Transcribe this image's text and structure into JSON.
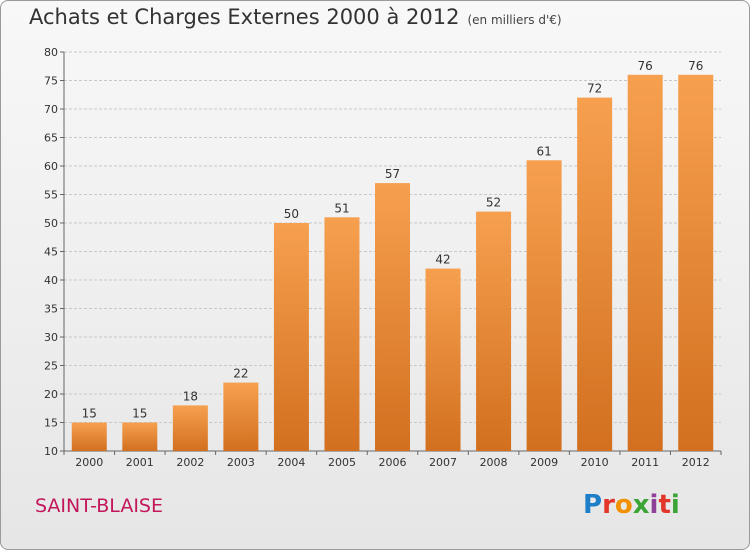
{
  "header": {
    "title": "Achats et Charges Externes 2000 à 2012",
    "unit": "(en milliers d'€)"
  },
  "footer": {
    "commune": "SAINT-BLAISE",
    "brand": "Proxiti"
  },
  "colors": {
    "bar_light": "#f6a04f",
    "bar_dark": "#d2701f",
    "grid": "#c8c8c8",
    "commune": "#c2185b"
  },
  "chart_data": {
    "type": "bar",
    "title": "Achats et Charges Externes 2000 à 2012",
    "subtitle": "(en milliers d'€)",
    "categories": [
      "2000",
      "2001",
      "2002",
      "2003",
      "2004",
      "2005",
      "2006",
      "2007",
      "2008",
      "2009",
      "2010",
      "2011",
      "2012"
    ],
    "values": [
      15,
      15,
      18,
      22,
      50,
      51,
      57,
      42,
      52,
      61,
      72,
      76,
      76
    ],
    "ylim": [
      10,
      80
    ],
    "yticks": [
      10,
      15,
      20,
      25,
      30,
      35,
      40,
      45,
      50,
      55,
      60,
      65,
      70,
      75,
      80
    ],
    "grid": true,
    "data_labels": true
  }
}
